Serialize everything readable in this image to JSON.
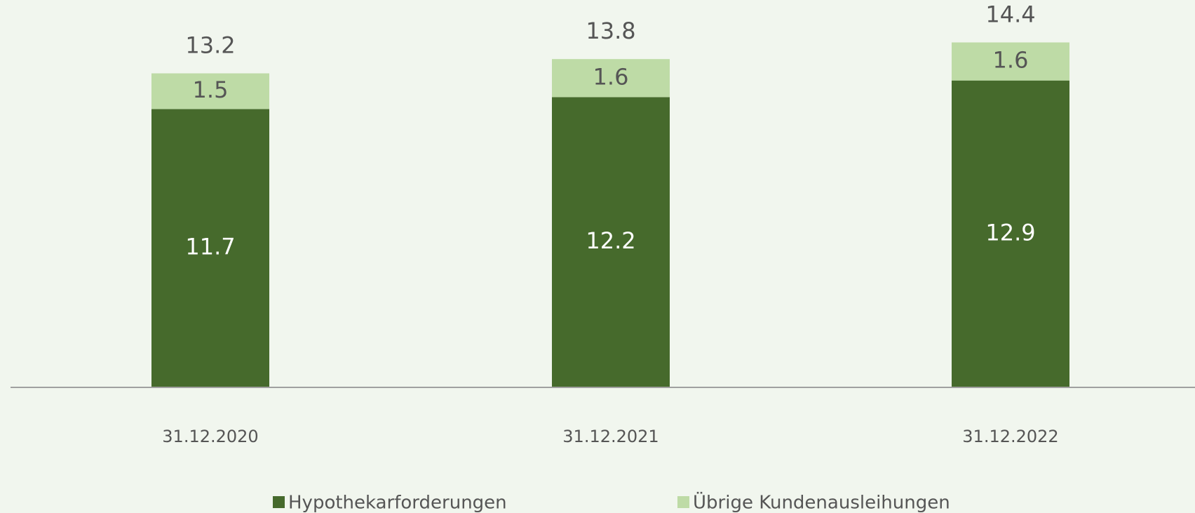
{
  "chart_data": {
    "type": "stacked_bar",
    "categories": [
      "31.12.2020",
      "31.12.2021",
      "31.12.2022"
    ],
    "series": [
      {
        "name": "Hypothekarforderungen",
        "color": "#466a2c",
        "values": [
          11.7,
          12.2,
          12.9
        ]
      },
      {
        "name": "Übrige Kundenausleihungen",
        "color": "#bedba6",
        "values": [
          1.5,
          1.6,
          1.6
        ]
      }
    ],
    "totals": [
      13.2,
      13.8,
      14.4
    ],
    "legend": "bottom"
  }
}
